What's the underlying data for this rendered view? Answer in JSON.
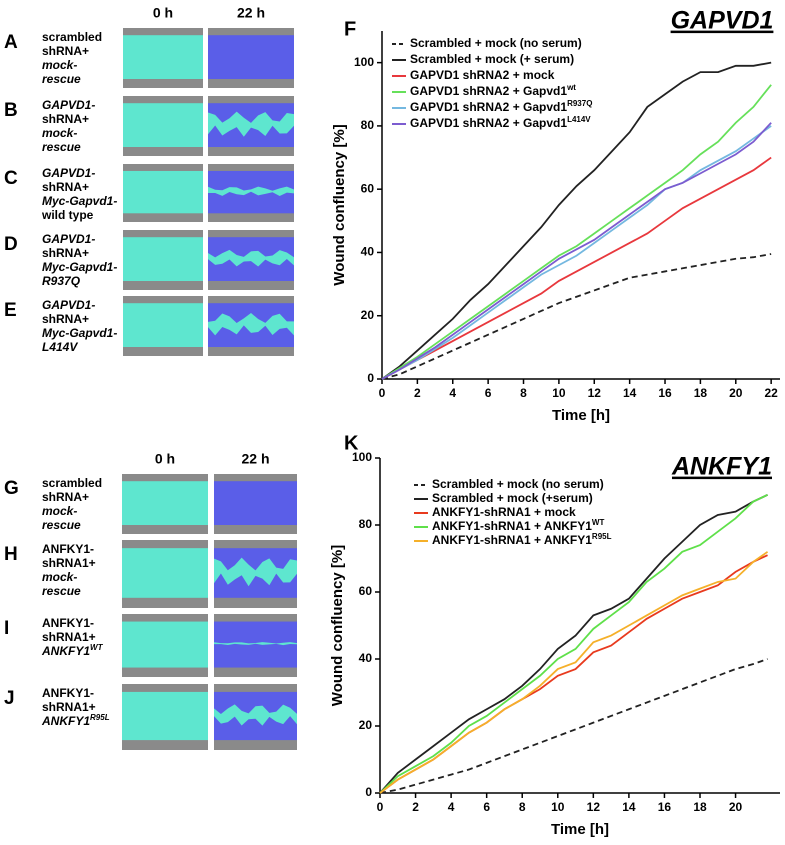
{
  "image_panels": [
    {
      "columns": [
        "0 h",
        "22 h"
      ],
      "rows": [
        {
          "letter": "A",
          "caption": [
            {
              "text": "scrambled"
            },
            {
              "text": "shRNA+"
            },
            {
              "text": "mock-",
              "italic": true
            },
            {
              "text": "rescue",
              "italic": true
            }
          ]
        },
        {
          "letter": "B",
          "caption": [
            {
              "text": "GAPVD1-",
              "italic": true
            },
            {
              "text": "shRNA+"
            },
            {
              "text": "mock-",
              "italic": true
            },
            {
              "text": "rescue",
              "italic": true
            }
          ]
        },
        {
          "letter": "C",
          "caption": [
            {
              "text": "GAPVD1-",
              "italic": true
            },
            {
              "text": "shRNA+"
            },
            {
              "text": "Myc-Gapvd1-",
              "italic": true
            },
            {
              "text": "wild type"
            }
          ]
        },
        {
          "letter": "D",
          "caption": [
            {
              "text": "GAPVD1-",
              "italic": true
            },
            {
              "text": "shRNA+"
            },
            {
              "text": "Myc-Gapvd1-",
              "italic": true
            },
            {
              "text": "R937Q",
              "italic": true
            }
          ]
        },
        {
          "letter": "E",
          "caption": [
            {
              "text": "GAPVD1-",
              "italic": true
            },
            {
              "text": "shRNA+"
            },
            {
              "text": "Myc-Gapvd1-",
              "italic": true
            },
            {
              "text": "L414V",
              "italic": true
            }
          ]
        }
      ]
    },
    {
      "columns": [
        "0 h",
        "22 h"
      ],
      "rows": [
        {
          "letter": "G",
          "caption": [
            {
              "text": "scrambled"
            },
            {
              "text": "shRNA+"
            },
            {
              "text": "mock-",
              "italic": true
            },
            {
              "text": "rescue",
              "italic": true
            }
          ]
        },
        {
          "letter": "H",
          "caption": [
            {
              "text": "ANFKY1-"
            },
            {
              "text": "shRNA1+"
            },
            {
              "text": "mock-",
              "italic": true
            },
            {
              "text": "rescue",
              "italic": true
            }
          ]
        },
        {
          "letter": "I",
          "caption": [
            {
              "text": "ANFKY1-"
            },
            {
              "text": "shRNA1+"
            },
            {
              "text": "ANKFY1",
              "sup": "WT",
              "italic": true
            }
          ]
        },
        {
          "letter": "J",
          "caption": [
            {
              "text": "ANFKY1-"
            },
            {
              "text": "shRNA1+"
            },
            {
              "text": "ANKFY1",
              "sup": "R95L",
              "italic": true
            }
          ]
        }
      ]
    }
  ],
  "chart_data": [
    {
      "type": "line",
      "panel_label": "F",
      "title": "GAPVD1",
      "x_label": "Time [h]",
      "y_label": "Wound confluency [%]",
      "x": [
        0,
        1,
        2,
        3,
        4,
        5,
        6,
        7,
        8,
        9,
        10,
        11,
        12,
        13,
        14,
        15,
        16,
        17,
        18,
        19,
        20,
        21,
        22
      ],
      "xlim": [
        0,
        22.5
      ],
      "xticks": [
        0,
        2,
        4,
        6,
        8,
        10,
        12,
        14,
        16,
        18,
        20,
        22
      ],
      "ylim": [
        0,
        110
      ],
      "yticks": [
        0,
        20,
        40,
        60,
        80,
        100
      ],
      "series": [
        {
          "name": "Scrambled + mock (no serum)",
          "color": "#222222",
          "dashed": true,
          "values": [
            0,
            1.5,
            4,
            6.5,
            9,
            11.5,
            14,
            16.5,
            19,
            21.5,
            24,
            26,
            28,
            30,
            32,
            33,
            34,
            35,
            36,
            37,
            38,
            38.5,
            39.5
          ]
        },
        {
          "name": "Scrambled + mock (+ serum)",
          "color": "#222222",
          "values": [
            0,
            4,
            9,
            14,
            19,
            25,
            30,
            36,
            42,
            48,
            55,
            61,
            66,
            72,
            78,
            86,
            90,
            94,
            97,
            97,
            99,
            99,
            100
          ]
        },
        {
          "name": "GAPVD1 shRNA2 + mock",
          "color": "#e8383d",
          "values": [
            0,
            3,
            6,
            9,
            12,
            15,
            18,
            21,
            24,
            27,
            31,
            34,
            37,
            40,
            43,
            46,
            50,
            54,
            57,
            60,
            63,
            66,
            70
          ]
        },
        {
          "name": "GAPVD1 shRNA2 + Gapvd1",
          "name_sup": "wt",
          "color": "#66e05a",
          "values": [
            0,
            3.5,
            7,
            11,
            15,
            19,
            23,
            27,
            31,
            35,
            39,
            42,
            46,
            50,
            54,
            58,
            62,
            66,
            71,
            75,
            81,
            86,
            93
          ]
        },
        {
          "name": "GAPVD1 shRNA2 + Gapvd1",
          "name_sup": "R937Q",
          "color": "#74b8e0",
          "values": [
            0,
            3,
            6,
            9.5,
            13,
            17,
            21,
            25,
            29,
            33,
            36,
            39,
            43,
            47,
            51,
            55,
            60,
            62,
            66,
            69,
            72,
            76,
            80
          ]
        },
        {
          "name": "GAPVD1 shRNA2 + Gapvd1",
          "name_sup": "L414V",
          "color": "#7c5cd0",
          "values": [
            0,
            3,
            6.5,
            10,
            14,
            18,
            22,
            26,
            30,
            34,
            38,
            41,
            44,
            48,
            52,
            56,
            60,
            62,
            65,
            68,
            71,
            75,
            81
          ]
        }
      ]
    },
    {
      "type": "line",
      "panel_label": "K",
      "title": "ANKFY1",
      "x_label": "Time [h]",
      "y_label": "Wound confluency [%]",
      "x": [
        0,
        1,
        2,
        3,
        4,
        5,
        6,
        7,
        8,
        9,
        10,
        11,
        12,
        13,
        14,
        15,
        16,
        17,
        18,
        19,
        20,
        21,
        21.8
      ],
      "xlim": [
        0,
        22.5
      ],
      "xticks": [
        0,
        2,
        4,
        6,
        8,
        10,
        12,
        14,
        16,
        18,
        20
      ],
      "ylim": [
        0,
        100
      ],
      "yticks": [
        0,
        20,
        40,
        60,
        80,
        100
      ],
      "series": [
        {
          "name": "Scrambled + mock (no serum)",
          "color": "#222222",
          "dashed": true,
          "values": [
            0,
            1,
            2.5,
            4,
            5.5,
            7,
            9,
            11,
            13,
            15,
            17,
            19,
            21,
            23,
            25,
            27,
            29,
            31,
            33,
            35,
            37,
            38.5,
            40
          ]
        },
        {
          "name": "Scrambled + mock (+serum)",
          "color": "#222222",
          "values": [
            0,
            6,
            10,
            14,
            18,
            22,
            25,
            28,
            32,
            37,
            43,
            47,
            53,
            55,
            58,
            64,
            70,
            75,
            80,
            83,
            84,
            87,
            89
          ]
        },
        {
          "name": "ANKFY1-shRNA1 + mock",
          "color": "#e83a1e",
          "values": [
            0,
            4,
            7,
            10,
            14,
            18,
            21,
            25,
            28,
            31,
            35,
            37,
            42,
            44,
            48,
            52,
            55,
            58,
            60,
            62,
            66,
            69,
            71
          ]
        },
        {
          "name": "ANKFY1-shRNA1 + ANKFY1",
          "name_sup": "WT",
          "color": "#5fe04a",
          "values": [
            0,
            5,
            8,
            11,
            15,
            20,
            23,
            27,
            31,
            35,
            40,
            43,
            49,
            53,
            57,
            63,
            67,
            72,
            74,
            78,
            82,
            87,
            89
          ]
        },
        {
          "name": "ANKFY1-shRNA1 + ANKFY1",
          "name_sup": "R95L",
          "color": "#f5b02a",
          "values": [
            0,
            4,
            7,
            10,
            14,
            18,
            21,
            25,
            28,
            32,
            37,
            39,
            45,
            47,
            50,
            53,
            56,
            59,
            61,
            63,
            64,
            69,
            72
          ]
        }
      ]
    }
  ]
}
